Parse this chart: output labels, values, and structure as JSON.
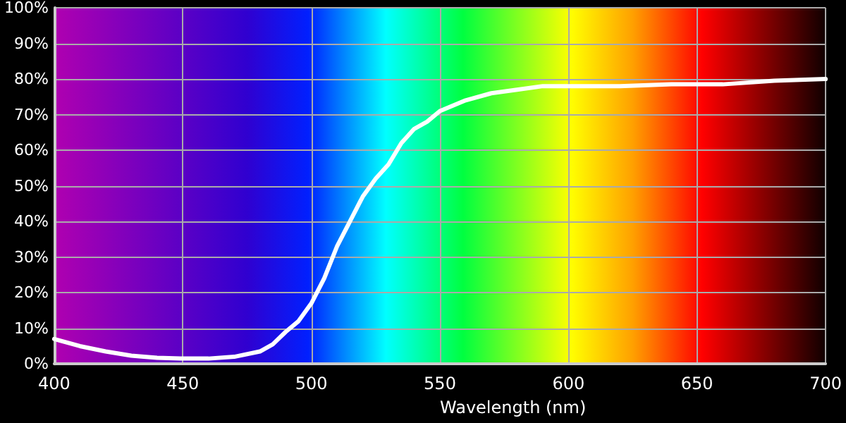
{
  "chart_data": {
    "type": "line",
    "xlabel": "Wavelength (nm)",
    "x": [
      400,
      410,
      420,
      430,
      440,
      450,
      460,
      470,
      480,
      485,
      490,
      495,
      500,
      505,
      510,
      515,
      520,
      525,
      530,
      535,
      540,
      545,
      550,
      560,
      570,
      580,
      590,
      600,
      620,
      640,
      660,
      680,
      700
    ],
    "series": [
      {
        "color": "#ffffff",
        "values": [
          7,
          5,
          3.5,
          2.3,
          1.7,
          1.5,
          1.5,
          2,
          3.5,
          5.5,
          9,
          12,
          17,
          24,
          33,
          40,
          47,
          52,
          56,
          62,
          66,
          68,
          71,
          74,
          76,
          77,
          78,
          78,
          78,
          78.5,
          78.5,
          79.5,
          80
        ]
      }
    ],
    "xlim": [
      400,
      700
    ],
    "xticks": [
      400,
      450,
      500,
      550,
      600,
      650,
      700
    ],
    "ylim": [
      0,
      100
    ],
    "yticks": [
      {
        "value": 0,
        "label": "0%"
      },
      {
        "value": 10,
        "label": "10%"
      },
      {
        "value": 20,
        "label": "20%"
      },
      {
        "value": 30,
        "label": "30%"
      },
      {
        "value": 40,
        "label": "40%"
      },
      {
        "value": 50,
        "label": "50%"
      },
      {
        "value": 60,
        "label": "60%"
      },
      {
        "value": 70,
        "label": "70%"
      },
      {
        "value": 80,
        "label": "80%"
      },
      {
        "value": 90,
        "label": "90%"
      },
      {
        "value": 100,
        "label": "100%"
      }
    ],
    "grid": true,
    "marker": "none",
    "line_style": "solid"
  }
}
